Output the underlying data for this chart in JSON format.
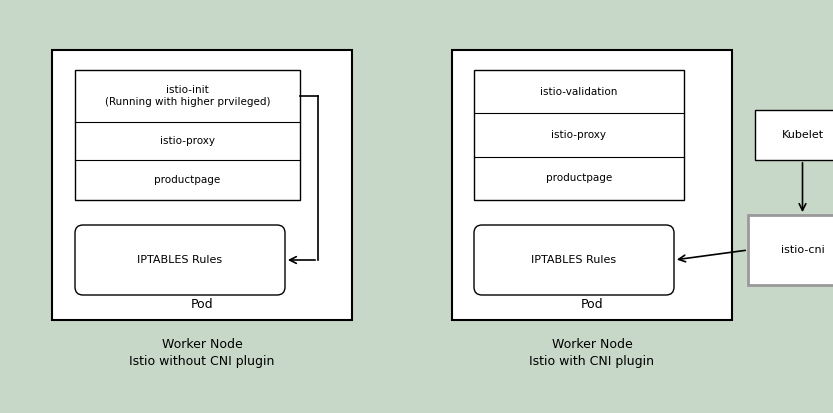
{
  "bg_color": "#c8d8c8",
  "fig_width": 8.33,
  "fig_height": 4.13,
  "left_panel": {
    "title": "Worker Node",
    "subtitle": "Istio without CNI plugin",
    "pod_label": "Pod",
    "init_label": "istio-init\n(Running with higher prvileged)",
    "proxy_label": "istio-proxy",
    "product_label": "productpage",
    "iptables_label": "IPTABLES Rules"
  },
  "right_panel": {
    "title": "Worker Node",
    "subtitle": "Istio with CNI plugin",
    "pod_label": "Pod",
    "validation_label": "istio-validation",
    "proxy_label": "istio-proxy",
    "product_label": "productpage",
    "iptables_label": "IPTABLES Rules",
    "kubelet_label": "Kubelet",
    "cni_label": "istio-cni"
  }
}
